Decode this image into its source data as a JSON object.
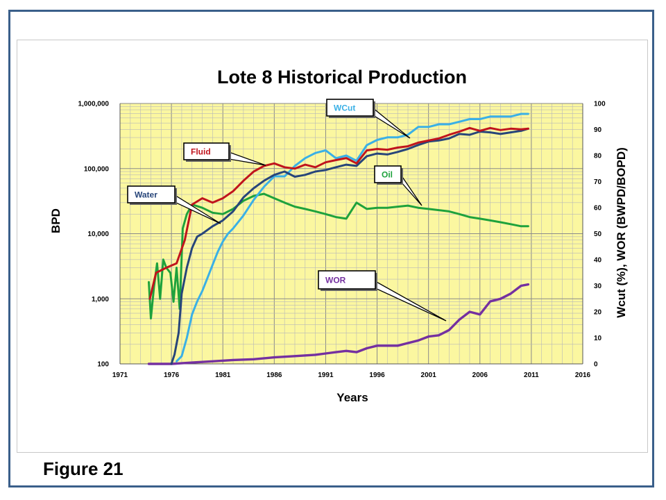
{
  "figure_label": "Figure 21",
  "chart_data": {
    "type": "line",
    "title": "Lote 8 Historical Production",
    "xlabel": "Years",
    "ylabel_left": "BPD",
    "ylabel_right": "Wcut (%), WOR (BWPD/BOPD)",
    "x_ticks": [
      "1971",
      "1976",
      "1981",
      "1986",
      "1991",
      "1996",
      "2001",
      "2006",
      "2011",
      "2016"
    ],
    "xlim": [
      1971,
      2016
    ],
    "y_left": {
      "scale": "log",
      "range": [
        100,
        1000000
      ],
      "ticks": [
        "1,000,000",
        "100,000",
        "10,000",
        "1,000",
        "100"
      ]
    },
    "y_right": {
      "scale": "linear",
      "range": [
        0,
        100
      ],
      "ticks": [
        "100",
        "90",
        "80",
        "70",
        "60",
        "50",
        "40",
        "30",
        "20",
        "10",
        "0"
      ]
    },
    "grid": true,
    "background": "#fbf7a0",
    "series": [
      {
        "name": "Fluid",
        "axis": "left",
        "color": "#c0141c",
        "x": [
          1973.9,
          1974.5,
          1975.5,
          1976.5,
          1977.3,
          1978,
          1979,
          1980,
          1981,
          1982,
          1983,
          1984,
          1985,
          1986,
          1987,
          1988,
          1989,
          1990,
          1991,
          1992,
          1993,
          1994,
          1995,
          1996,
          1997,
          1998,
          1999,
          2000,
          2001,
          2002,
          2003,
          2004,
          2005,
          2006,
          2007,
          2008,
          2009,
          2010,
          2010.7
        ],
        "y": [
          1000,
          2500,
          3000,
          3500,
          8000,
          28000,
          35000,
          30000,
          35000,
          45000,
          65000,
          90000,
          110000,
          120000,
          105000,
          100000,
          115000,
          105000,
          125000,
          135000,
          145000,
          120000,
          190000,
          200000,
          195000,
          210000,
          220000,
          250000,
          270000,
          290000,
          330000,
          370000,
          420000,
          380000,
          420000,
          390000,
          410000,
          400000,
          410000
        ]
      },
      {
        "name": "Water",
        "axis": "left",
        "color": "#27457a",
        "x": [
          1976,
          1976.3,
          1976.7,
          1977,
          1977.5,
          1978,
          1978.5,
          1979,
          1980,
          1981,
          1982,
          1983,
          1984,
          1985,
          1986,
          1987,
          1988,
          1989,
          1990,
          1991,
          1992,
          1993,
          1994,
          1995,
          1996,
          1997,
          1998,
          1999,
          2000,
          2001,
          2002,
          2003,
          2004,
          2005,
          2006,
          2007,
          2008,
          2009,
          2010,
          2010.7
        ],
        "y": [
          100,
          140,
          300,
          1200,
          3000,
          6000,
          9000,
          10000,
          13000,
          16000,
          22000,
          36000,
          50000,
          65000,
          80000,
          90000,
          75000,
          80000,
          90000,
          95000,
          105000,
          115000,
          110000,
          155000,
          170000,
          165000,
          180000,
          200000,
          230000,
          260000,
          270000,
          290000,
          340000,
          330000,
          370000,
          360000,
          340000,
          360000,
          380000,
          410000
        ]
      },
      {
        "name": "Oil",
        "axis": "left",
        "color": "#1ea23c",
        "x": [
          1973.8,
          1974,
          1974.3,
          1974.6,
          1974.9,
          1975.2,
          1975.5,
          1975.9,
          1976.2,
          1976.5,
          1976.8,
          1977.1,
          1977.5,
          1978,
          1979,
          1980,
          1981,
          1982,
          1983,
          1984,
          1985,
          1986,
          1987,
          1988,
          1989,
          1990,
          1991,
          1992,
          1993,
          1994,
          1995,
          1996,
          1997,
          1998,
          1999,
          2000,
          2001,
          2002,
          2003,
          2004,
          2005,
          2006,
          2007,
          2008,
          2009,
          2010,
          2010.7
        ],
        "y": [
          1800,
          500,
          1500,
          3500,
          1000,
          4000,
          3000,
          2500,
          900,
          3000,
          700,
          12000,
          20000,
          28000,
          25000,
          21000,
          20000,
          24000,
          32000,
          38000,
          41000,
          35000,
          30000,
          26000,
          24000,
          22000,
          20000,
          18000,
          17000,
          30000,
          24000,
          25000,
          25000,
          26000,
          27000,
          25000,
          24000,
          23000,
          22000,
          20000,
          18000,
          17000,
          16000,
          15000,
          14000,
          13000,
          13000
        ]
      },
      {
        "name": "WCut",
        "axis": "right",
        "color": "#3ab0e6",
        "x": [
          1976.5,
          1977,
          1977.5,
          1978,
          1978.5,
          1979,
          1979.5,
          1980,
          1980.5,
          1981,
          1981.5,
          1982,
          1983,
          1984,
          1985,
          1986,
          1987,
          1988,
          1989,
          1990,
          1991,
          1992,
          1993,
          1994,
          1995,
          1996,
          1997,
          1998,
          1999,
          2000,
          2001,
          2002,
          2003,
          2004,
          2005,
          2006,
          2007,
          2008,
          2009,
          2010,
          2010.7
        ],
        "y": [
          1,
          3,
          10,
          19,
          24,
          28,
          33,
          38,
          43,
          47,
          50,
          52,
          57,
          63,
          68,
          72,
          72,
          76,
          79,
          81,
          82,
          79,
          80,
          78,
          84,
          86,
          87,
          87,
          88,
          91,
          91,
          92,
          92,
          93,
          94,
          94,
          95,
          95,
          95,
          96,
          96
        ]
      },
      {
        "name": "WOR",
        "axis": "right",
        "color": "#7430a0",
        "x": [
          1973.8,
          1976,
          1978,
          1980,
          1982,
          1984,
          1986,
          1988,
          1990,
          1991,
          1992,
          1993,
          1994,
          1995,
          1996,
          1997,
          1998,
          1999,
          2000,
          2001,
          2002,
          2003,
          2004,
          2005,
          2006,
          2007,
          2008,
          2009,
          2010,
          2010.7
        ],
        "y": [
          0,
          0,
          0.5,
          1,
          1.5,
          1.8,
          2.5,
          3,
          3.5,
          4,
          4.5,
          5,
          4.5,
          6,
          7,
          7,
          7,
          8,
          9,
          10.5,
          11,
          13,
          17,
          20,
          19,
          24,
          25,
          27,
          30,
          30.5
        ]
      }
    ],
    "callouts": [
      {
        "label": "WCut",
        "color": "#3ab0e6"
      },
      {
        "label": "Fluid",
        "color": "#c0141c"
      },
      {
        "label": "Water",
        "color": "#27457a"
      },
      {
        "label": "Oil",
        "color": "#1ea23c"
      },
      {
        "label": "WOR",
        "color": "#7430a0"
      }
    ]
  }
}
